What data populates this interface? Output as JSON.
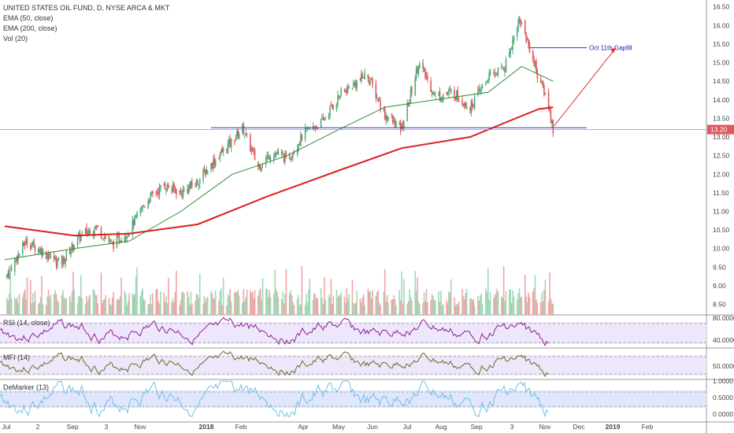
{
  "header": {
    "title": "UNITED STATES OIL FUND, D, NYSE ARCA & MKT",
    "indicators": [
      "EMA (50, close)",
      "EMA (200, close)",
      "Vol (20)"
    ]
  },
  "panes": {
    "rsi": {
      "label": "RSI (14, close)",
      "ticks": [
        "80.0000",
        "40.0000"
      ]
    },
    "mfi": {
      "label": "MFI (14)",
      "ticks": [
        "50.0000"
      ]
    },
    "demarker": {
      "label": "DeMarker (13)",
      "ticks": [
        "1.0000",
        "0.5000",
        "0.0000"
      ]
    }
  },
  "colors": {
    "up": "#4caf7d",
    "down": "#e0585c",
    "ema50": "#2e8b2e",
    "ema200": "#dd1f1f",
    "hline": "#3333cc",
    "annot_arrow": "#e03030",
    "last_price_bg": "#e0585c",
    "rsi_line": "#8e1f9a",
    "mfi_line": "#6b6b2a",
    "dem_line": "#6fc1e6",
    "osc_bg": "#eee7fb",
    "dem_bg": "#e0e6fb"
  },
  "chart_data": {
    "type": "candlestick",
    "title": "UNITED STATES OIL FUND, D, NYSE ARCA & MKT",
    "y_ticks": [
      "16.50",
      "16.00",
      "15.50",
      "15.00",
      "14.50",
      "14.00",
      "13.50",
      "13.00",
      "12.50",
      "12.00",
      "11.50",
      "11.00",
      "10.50",
      "10.00",
      "9.50",
      "9.00",
      "8.50"
    ],
    "ylim": [
      8.3,
      16.6
    ],
    "x_labels": [
      "Jul",
      "2",
      "Sep",
      "3",
      "Nov",
      "2018",
      "Feb",
      "Apr",
      "May",
      "Jun",
      "Jul",
      "Aug",
      "Sep",
      "3",
      "Nov",
      "Dec",
      "2019",
      "Feb"
    ],
    "last_price": "13.20",
    "close_path": [
      {
        "d": "2017-07-01",
        "v": 9.2
      },
      {
        "d": "2017-07-20",
        "v": 10.2
      },
      {
        "d": "2017-08-05",
        "v": 9.9
      },
      {
        "d": "2017-08-20",
        "v": 9.6
      },
      {
        "d": "2017-09-05",
        "v": 10.3
      },
      {
        "d": "2017-09-20",
        "v": 10.6
      },
      {
        "d": "2017-10-05",
        "v": 10.1
      },
      {
        "d": "2017-10-20",
        "v": 10.5
      },
      {
        "d": "2017-11-05",
        "v": 11.3
      },
      {
        "d": "2017-11-20",
        "v": 11.7
      },
      {
        "d": "2017-12-05",
        "v": 11.5
      },
      {
        "d": "2017-12-20",
        "v": 11.8
      },
      {
        "d": "2018-01-05",
        "v": 12.4
      },
      {
        "d": "2018-01-20",
        "v": 12.9
      },
      {
        "d": "2018-01-29",
        "v": 13.25
      },
      {
        "d": "2018-02-12",
        "v": 12.2
      },
      {
        "d": "2018-02-25",
        "v": 12.6
      },
      {
        "d": "2018-03-10",
        "v": 12.4
      },
      {
        "d": "2018-03-25",
        "v": 13.1
      },
      {
        "d": "2018-04-10",
        "v": 13.4
      },
      {
        "d": "2018-04-25",
        "v": 14.1
      },
      {
        "d": "2018-05-20",
        "v": 14.7
      },
      {
        "d": "2018-06-05",
        "v": 13.6
      },
      {
        "d": "2018-06-20",
        "v": 13.2
      },
      {
        "d": "2018-07-05",
        "v": 15.0
      },
      {
        "d": "2018-07-20",
        "v": 14.1
      },
      {
        "d": "2018-08-05",
        "v": 14.2
      },
      {
        "d": "2018-08-20",
        "v": 13.8
      },
      {
        "d": "2018-09-05",
        "v": 14.6
      },
      {
        "d": "2018-09-20",
        "v": 14.9
      },
      {
        "d": "2018-10-03",
        "v": 16.2
      },
      {
        "d": "2018-10-12",
        "v": 15.4
      },
      {
        "d": "2018-10-20",
        "v": 14.6
      },
      {
        "d": "2018-10-28",
        "v": 14.0
      },
      {
        "d": "2018-11-02",
        "v": 13.2
      }
    ],
    "ema50_path": [
      {
        "d": "2017-07-01",
        "v": 9.7
      },
      {
        "d": "2017-09-01",
        "v": 10.0
      },
      {
        "d": "2017-10-20",
        "v": 10.2
      },
      {
        "d": "2017-12-05",
        "v": 11.0
      },
      {
        "d": "2018-01-20",
        "v": 12.0
      },
      {
        "d": "2018-03-10",
        "v": 12.5
      },
      {
        "d": "2018-04-25",
        "v": 13.2
      },
      {
        "d": "2018-06-05",
        "v": 13.8
      },
      {
        "d": "2018-07-20",
        "v": 14.0
      },
      {
        "d": "2018-09-05",
        "v": 14.2
      },
      {
        "d": "2018-10-05",
        "v": 14.9
      },
      {
        "d": "2018-11-02",
        "v": 14.5
      }
    ],
    "ema200_path": [
      {
        "d": "2017-07-01",
        "v": 10.6
      },
      {
        "d": "2017-09-01",
        "v": 10.35
      },
      {
        "d": "2017-10-20",
        "v": 10.4
      },
      {
        "d": "2017-12-20",
        "v": 10.65
      },
      {
        "d": "2018-02-20",
        "v": 11.4
      },
      {
        "d": "2018-04-25",
        "v": 12.1
      },
      {
        "d": "2018-06-20",
        "v": 12.7
      },
      {
        "d": "2018-08-20",
        "v": 13.0
      },
      {
        "d": "2018-10-20",
        "v": 13.75
      },
      {
        "d": "2018-11-02",
        "v": 13.8
      }
    ],
    "support_line": {
      "from": "2018-01-01",
      "to": "2018-12-02",
      "v": 13.25
    },
    "gapfill_line": {
      "from": "2018-10-12",
      "to": "2018-12-02",
      "v": 15.4,
      "label": "Oct 11th Gapfill"
    },
    "projection_arrow": {
      "from_d": "2018-11-03",
      "from_v": 13.3,
      "to_d": "2018-12-28",
      "to_v": 15.4
    }
  }
}
